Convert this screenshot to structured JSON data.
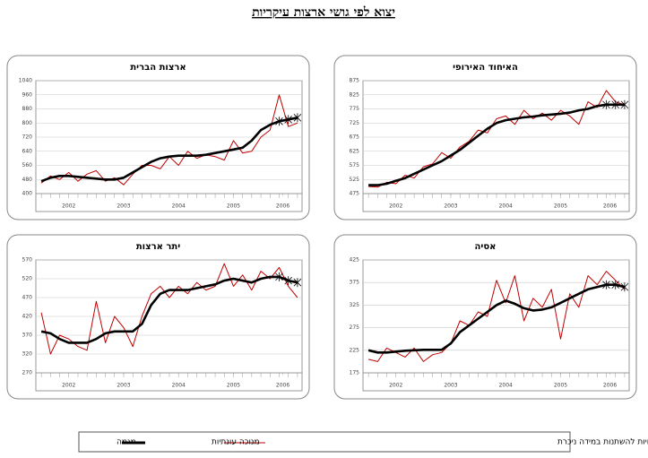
{
  "title": "יצוא לפי גושי ארצות עיקריות",
  "note": "* שלוש הנקודות האחרונות של המגמה עשויות להשתנות במידה ניכרת",
  "chart_data": [
    {
      "type": "line",
      "title": "ארצות הברית",
      "x": [
        2002,
        2002.167,
        2002.333,
        2002.5,
        2002.667,
        2002.833,
        2003,
        2003.167,
        2003.333,
        2003.5,
        2003.667,
        2003.833,
        2004,
        2004.167,
        2004.333,
        2004.5,
        2004.667,
        2004.833,
        2005,
        2005.167,
        2005.333,
        2005.5,
        2005.667,
        2005.833,
        2006,
        2006.167,
        2006.333,
        2006.5,
        2006.667
      ],
      "xlim": [
        2001.9,
        2006.75
      ],
      "xticks": [
        {
          "value": 2002.5,
          "label": "2002"
        },
        {
          "value": 2003.5,
          "label": "2003"
        },
        {
          "value": 2004.5,
          "label": "2004"
        },
        {
          "value": 2005.5,
          "label": "2005"
        },
        {
          "value": 2006.4,
          "label": "2006"
        }
      ],
      "ylim": [
        400,
        1040
      ],
      "yticks": [
        400,
        480,
        560,
        640,
        720,
        800,
        880,
        960,
        1040
      ],
      "series": [
        {
          "name": "מנוכה עונתיות",
          "color": "#c00000",
          "values": [
            460,
            500,
            480,
            520,
            470,
            510,
            530,
            470,
            490,
            450,
            510,
            560,
            560,
            540,
            610,
            560,
            640,
            600,
            620,
            610,
            590,
            700,
            630,
            640,
            720,
            760,
            960,
            780,
            800
          ]
        },
        {
          "name": "מגמה",
          "color": "#000000",
          "values": [
            470,
            490,
            500,
            500,
            495,
            490,
            485,
            480,
            480,
            490,
            520,
            550,
            580,
            600,
            610,
            615,
            615,
            615,
            620,
            630,
            640,
            650,
            660,
            700,
            760,
            790,
            810,
            820,
            830
          ]
        }
      ]
    },
    {
      "type": "line",
      "title": "האיחוד האירופי",
      "x": [
        2002,
        2002.167,
        2002.333,
        2002.5,
        2002.667,
        2002.833,
        2003,
        2003.167,
        2003.333,
        2003.5,
        2003.667,
        2003.833,
        2004,
        2004.167,
        2004.333,
        2004.5,
        2004.667,
        2004.833,
        2005,
        2005.167,
        2005.333,
        2005.5,
        2005.667,
        2005.833,
        2006,
        2006.167,
        2006.333,
        2006.5,
        2006.667
      ],
      "xlim": [
        2001.9,
        2006.75
      ],
      "xticks": [
        {
          "value": 2002.5,
          "label": "2002"
        },
        {
          "value": 2003.5,
          "label": "2003"
        },
        {
          "value": 2004.5,
          "label": "2004"
        },
        {
          "value": 2005.5,
          "label": "2005"
        },
        {
          "value": 2006.4,
          "label": "2006"
        }
      ],
      "ylim": [
        475,
        875
      ],
      "yticks": [
        475,
        525,
        575,
        625,
        675,
        725,
        775,
        825,
        875
      ],
      "series": [
        {
          "color": "#c00000",
          "values": [
            500,
            498,
            515,
            510,
            540,
            530,
            570,
            580,
            620,
            600,
            640,
            660,
            700,
            690,
            740,
            750,
            720,
            770,
            740,
            760,
            735,
            770,
            750,
            720,
            800,
            780,
            840,
            800,
            790
          ]
        },
        {
          "color": "#000000",
          "values": [
            505,
            505,
            510,
            520,
            530,
            545,
            560,
            575,
            590,
            610,
            630,
            655,
            680,
            705,
            725,
            735,
            740,
            745,
            748,
            752,
            755,
            758,
            762,
            770,
            775,
            785,
            790,
            790,
            790
          ]
        }
      ]
    },
    {
      "type": "line",
      "title": "יתר ארצות",
      "x": [
        2002,
        2002.167,
        2002.333,
        2002.5,
        2002.667,
        2002.833,
        2003,
        2003.167,
        2003.333,
        2003.5,
        2003.667,
        2003.833,
        2004,
        2004.167,
        2004.333,
        2004.5,
        2004.667,
        2004.833,
        2005,
        2005.167,
        2005.333,
        2005.5,
        2005.667,
        2005.833,
        2006,
        2006.167,
        2006.333,
        2006.5,
        2006.667
      ],
      "xlim": [
        2001.9,
        2006.75
      ],
      "xticks": [
        {
          "value": 2002.5,
          "label": "2002"
        },
        {
          "value": 2003.5,
          "label": "2003"
        },
        {
          "value": 2004.5,
          "label": "2004"
        },
        {
          "value": 2005.5,
          "label": "2005"
        },
        {
          "value": 2006.4,
          "label": "2006"
        }
      ],
      "ylim": [
        270,
        570
      ],
      "yticks": [
        270,
        320,
        370,
        420,
        470,
        520,
        570
      ],
      "series": [
        {
          "color": "#c00000",
          "values": [
            430,
            320,
            370,
            360,
            340,
            330,
            460,
            350,
            420,
            390,
            340,
            420,
            480,
            500,
            470,
            500,
            480,
            510,
            490,
            500,
            560,
            500,
            530,
            490,
            540,
            520,
            550,
            500,
            470
          ]
        },
        {
          "color": "#000000",
          "values": [
            380,
            375,
            360,
            350,
            350,
            350,
            360,
            375,
            380,
            380,
            380,
            400,
            450,
            480,
            490,
            490,
            490,
            495,
            500,
            505,
            515,
            520,
            515,
            510,
            520,
            525,
            525,
            515,
            510
          ]
        }
      ]
    },
    {
      "type": "line",
      "title": "אסיה",
      "x": [
        2002,
        2002.167,
        2002.333,
        2002.5,
        2002.667,
        2002.833,
        2003,
        2003.167,
        2003.333,
        2003.5,
        2003.667,
        2003.833,
        2004,
        2004.167,
        2004.333,
        2004.5,
        2004.667,
        2004.833,
        2005,
        2005.167,
        2005.333,
        2005.5,
        2005.667,
        2005.833,
        2006,
        2006.167,
        2006.333,
        2006.5,
        2006.667
      ],
      "xlim": [
        2001.9,
        2006.75
      ],
      "xticks": [
        {
          "value": 2002.5,
          "label": "2002"
        },
        {
          "value": 2003.5,
          "label": "2003"
        },
        {
          "value": 2004.5,
          "label": "2004"
        },
        {
          "value": 2005.5,
          "label": "2005"
        },
        {
          "value": 2006.4,
          "label": "2006"
        }
      ],
      "ylim": [
        175,
        425
      ],
      "yticks": [
        175,
        225,
        275,
        325,
        375,
        425
      ],
      "series": [
        {
          "color": "#c00000",
          "values": [
            205,
            200,
            230,
            220,
            210,
            230,
            200,
            215,
            220,
            240,
            290,
            280,
            310,
            300,
            380,
            330,
            390,
            290,
            340,
            320,
            360,
            250,
            350,
            320,
            390,
            370,
            400,
            380,
            360
          ]
        },
        {
          "color": "#000000",
          "values": [
            225,
            220,
            220,
            222,
            224,
            225,
            226,
            226,
            226,
            240,
            265,
            280,
            295,
            310,
            325,
            335,
            328,
            318,
            313,
            315,
            320,
            330,
            340,
            350,
            360,
            365,
            370,
            370,
            365
          ]
        }
      ]
    }
  ]
}
